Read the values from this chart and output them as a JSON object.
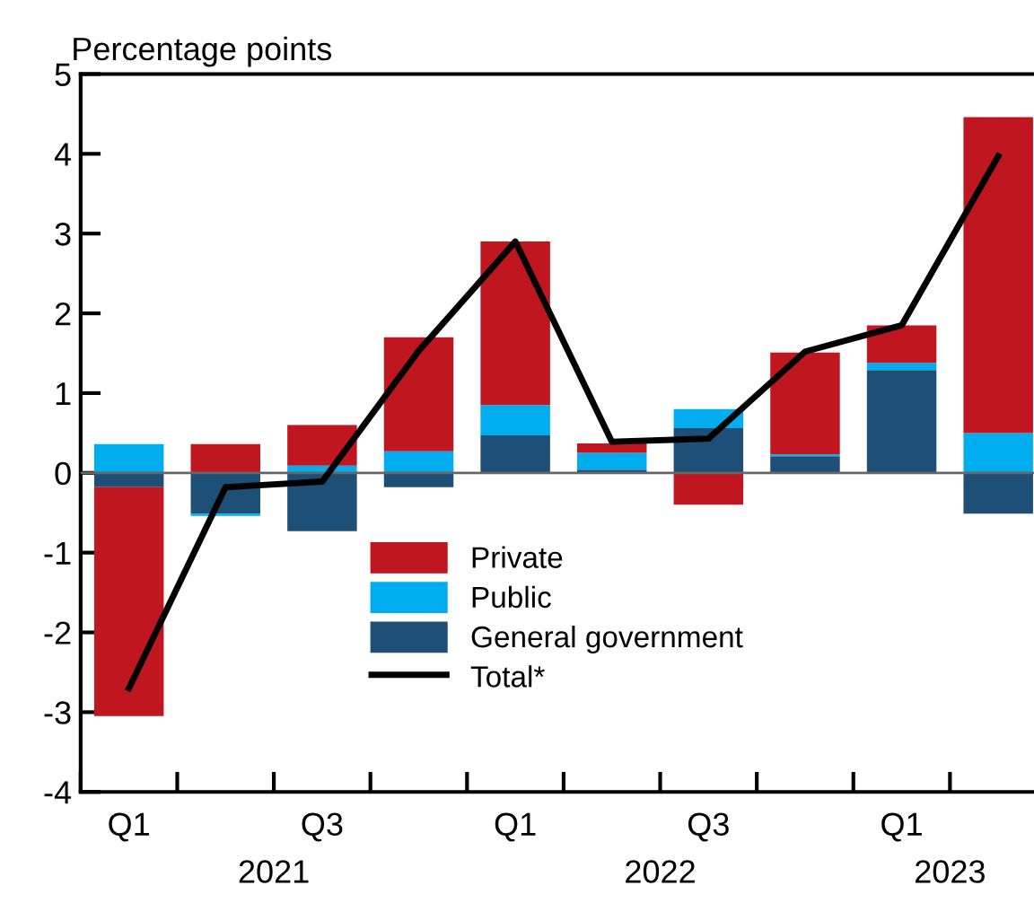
{
  "chart_data": {
    "type": "bar",
    "stacked": true,
    "ylabel": "Percentage points",
    "categories": [
      "Q1",
      null,
      "Q3",
      null,
      "Q1",
      null,
      "Q3",
      null,
      "Q1",
      null
    ],
    "series": [
      {
        "name": "General government",
        "color": "#1d4f77",
        "values": [
          -0.18,
          -0.51,
          -0.73,
          -0.18,
          0.47,
          0.04,
          0.56,
          0.21,
          1.29,
          -0.51
        ]
      },
      {
        "name": "Public",
        "color": "#00aeef",
        "values": [
          0.36,
          -0.03,
          0.09,
          0.27,
          0.38,
          0.21,
          0.24,
          0.02,
          0.09,
          0.5
        ]
      },
      {
        "name": "Private",
        "color": "#c0161f",
        "values": [
          -2.87,
          0.36,
          0.51,
          1.43,
          2.05,
          0.12,
          -0.4,
          1.28,
          0.47,
          3.96
        ]
      },
      {
        "name": "Total*",
        "type": "line",
        "color": "#000000",
        "values": [
          -2.7,
          -0.18,
          -0.11,
          1.53,
          2.9,
          0.39,
          0.43,
          1.52,
          1.85,
          3.97
        ]
      }
    ],
    "ylim": [
      -4,
      5
    ],
    "yticks": [
      -4,
      -3,
      -2,
      -1,
      0,
      1,
      2,
      3,
      4,
      5
    ],
    "ref_lines": [
      {
        "axis": "y",
        "value": 0,
        "color": "#666666"
      }
    ],
    "annotations": [
      "2021",
      "2022",
      "2023"
    ],
    "legend": "bottom",
    "grid": false,
    "marker": "none",
    "line_style": "solid"
  }
}
